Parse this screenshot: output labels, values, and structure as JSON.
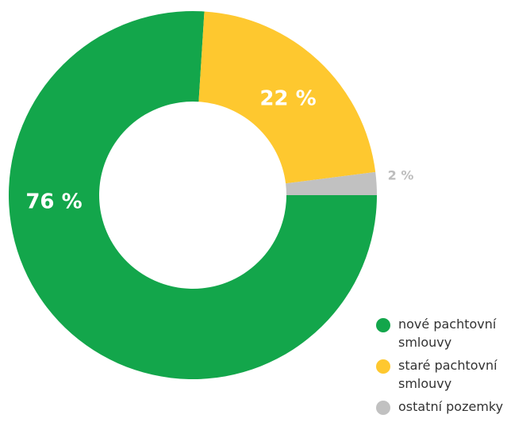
{
  "chart_data": {
    "type": "donut",
    "categories": [
      "nové pachtovní smlouvy",
      "staré pachtovní smlouvy",
      "ostatní pozemky"
    ],
    "values": [
      76,
      22,
      2
    ],
    "value_labels": [
      "76 %",
      "22 %",
      "2 %"
    ],
    "colors": [
      "#13a64b",
      "#fec82f",
      "#c1c1c1"
    ],
    "legend": "bottom-right"
  }
}
